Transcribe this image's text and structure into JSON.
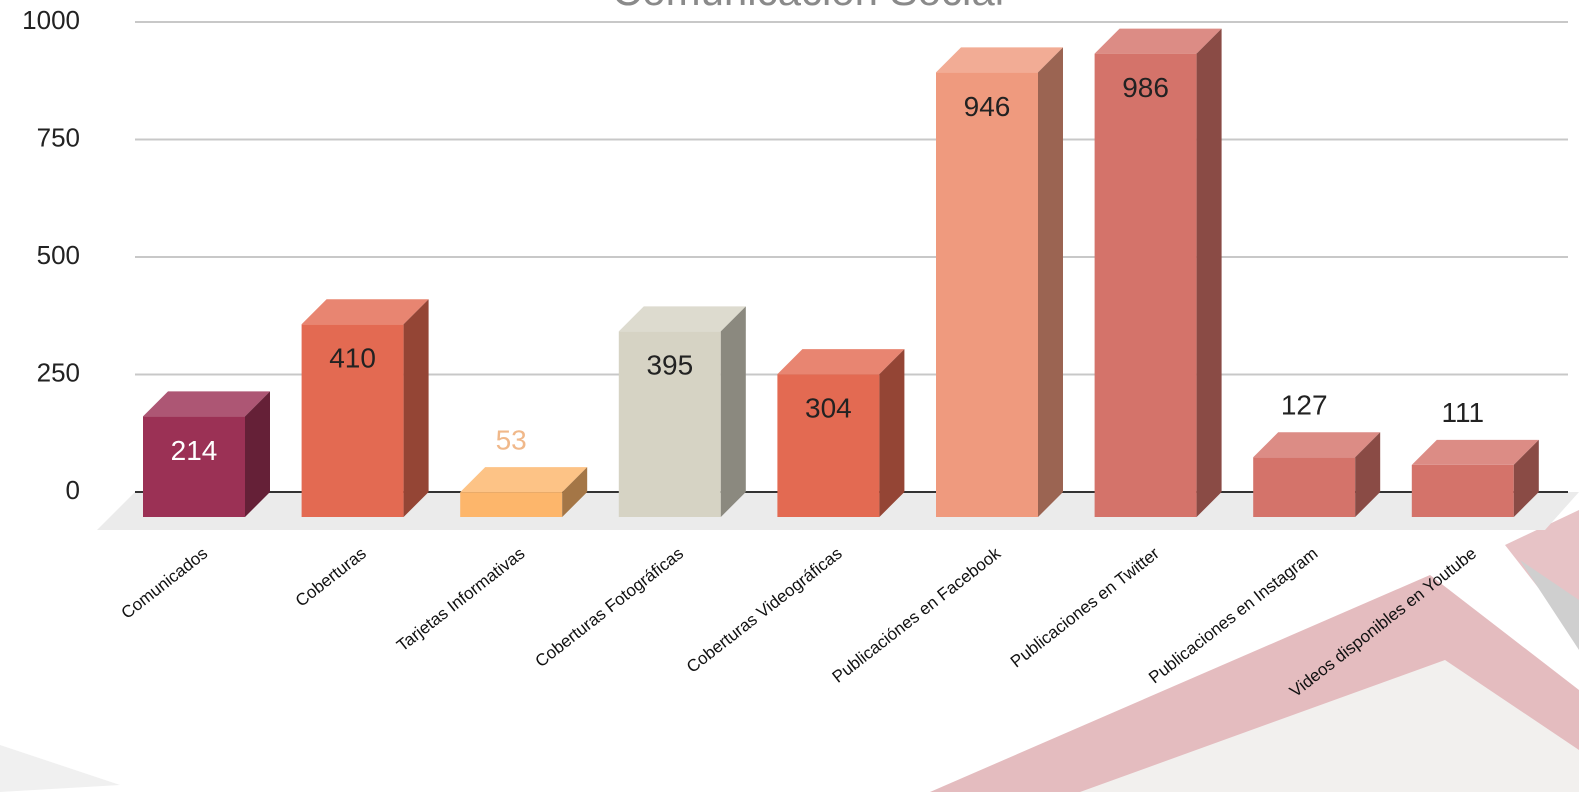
{
  "chart_data": {
    "type": "bar3d",
    "title": "Comunicación Social",
    "categories": [
      "Comunicados",
      "Coberturas",
      "Tarjetas Informativas",
      "Coberturas Fotográficas",
      "Coberturas Videográficas",
      "Publicaciónes en Facebook",
      "Publicaciones en Twitter",
      "Publicaciones en Instagram",
      "Videos disponibles en Youtube"
    ],
    "values": [
      214,
      410,
      53,
      395,
      304,
      946,
      986,
      127,
      111
    ],
    "colors": [
      "#9b3155",
      "#e36a52",
      "#fdb66b",
      "#d6d3c4",
      "#e36a52",
      "#ef9a7e",
      "#d4736a",
      "#d4736a",
      "#d4736a"
    ],
    "label_colors": [
      "#ffffff",
      "#222222",
      "#f0b88a",
      "#222222",
      "#222222",
      "#222222",
      "#222222",
      "#222222",
      "#222222"
    ],
    "ylim": [
      0,
      1000
    ],
    "yticks": [
      0,
      250,
      500,
      750,
      1000
    ],
    "grid": true
  }
}
